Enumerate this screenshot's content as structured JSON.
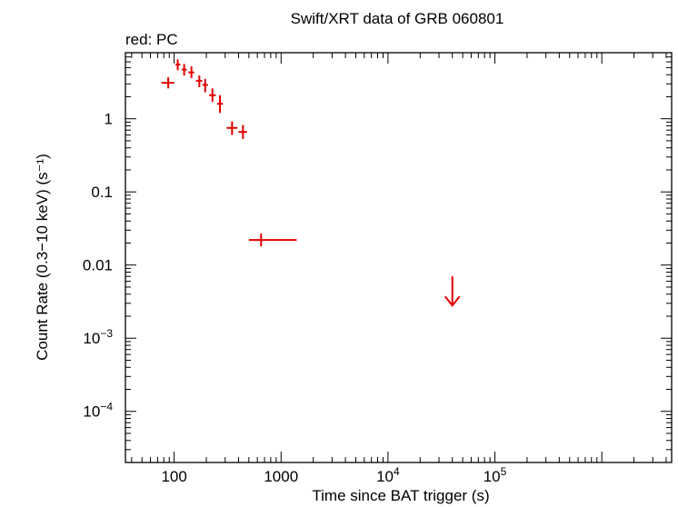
{
  "chart_data": {
    "type": "scatter",
    "title": "Swift/XRT data of GRB 060801",
    "subtitle": "red: PC",
    "xlabel": "Time since BAT trigger (s)",
    "ylabel": "Count Rate (0.3−10 keV) (s⁻¹)",
    "xscale": "log",
    "yscale": "log",
    "xlim": [
      35,
      4500000
    ],
    "ylim": [
      2e-05,
      8
    ],
    "grid": false,
    "x_ticks": [
      {
        "value": 100,
        "base": "100",
        "exp": ""
      },
      {
        "value": 1000,
        "base": "1000",
        "exp": ""
      },
      {
        "value": 10000,
        "base": "10",
        "exp": "4"
      },
      {
        "value": 100000,
        "base": "10",
        "exp": "5"
      }
    ],
    "y_ticks": [
      {
        "value": 1,
        "base": "1",
        "exp": ""
      },
      {
        "value": 0.1,
        "base": "0.1",
        "exp": ""
      },
      {
        "value": 0.01,
        "base": "0.01",
        "exp": ""
      },
      {
        "value": 0.001,
        "base": "10",
        "exp": "−3"
      },
      {
        "value": 0.0001,
        "base": "10",
        "exp": "−4"
      }
    ],
    "series": [
      {
        "color": "#e00000",
        "points": [
          {
            "x": 88,
            "xlo": 76,
            "xhi": 100,
            "y": 3.1,
            "ylo": 2.6,
            "yhi": 3.7
          },
          {
            "x": 108,
            "xlo": 103,
            "xhi": 114,
            "y": 5.5,
            "ylo": 4.6,
            "yhi": 6.5
          },
          {
            "x": 124,
            "xlo": 118,
            "xhi": 131,
            "y": 4.7,
            "ylo": 3.9,
            "yhi": 5.6
          },
          {
            "x": 145,
            "xlo": 136,
            "xhi": 154,
            "y": 4.3,
            "ylo": 3.6,
            "yhi": 5.2
          },
          {
            "x": 172,
            "xlo": 160,
            "xhi": 183,
            "y": 3.3,
            "ylo": 2.7,
            "yhi": 3.9
          },
          {
            "x": 195,
            "xlo": 184,
            "xhi": 207,
            "y": 2.9,
            "ylo": 2.3,
            "yhi": 3.5
          },
          {
            "x": 228,
            "xlo": 212,
            "xhi": 245,
            "y": 2.1,
            "ylo": 1.7,
            "yhi": 2.6
          },
          {
            "x": 268,
            "xlo": 252,
            "xhi": 285,
            "y": 1.6,
            "ylo": 1.2,
            "yhi": 2.1
          },
          {
            "x": 348,
            "xlo": 310,
            "xhi": 390,
            "y": 0.75,
            "ylo": 0.6,
            "yhi": 0.92
          },
          {
            "x": 440,
            "xlo": 400,
            "xhi": 480,
            "y": 0.66,
            "ylo": 0.53,
            "yhi": 0.82
          },
          {
            "x": 650,
            "xlo": 500,
            "xhi": 1400,
            "y": 0.022,
            "ylo": 0.018,
            "yhi": 0.027
          }
        ],
        "upper_limits": [
          {
            "x": 40000,
            "y": 0.007,
            "y_arrow_end": 0.0028
          }
        ]
      }
    ]
  }
}
